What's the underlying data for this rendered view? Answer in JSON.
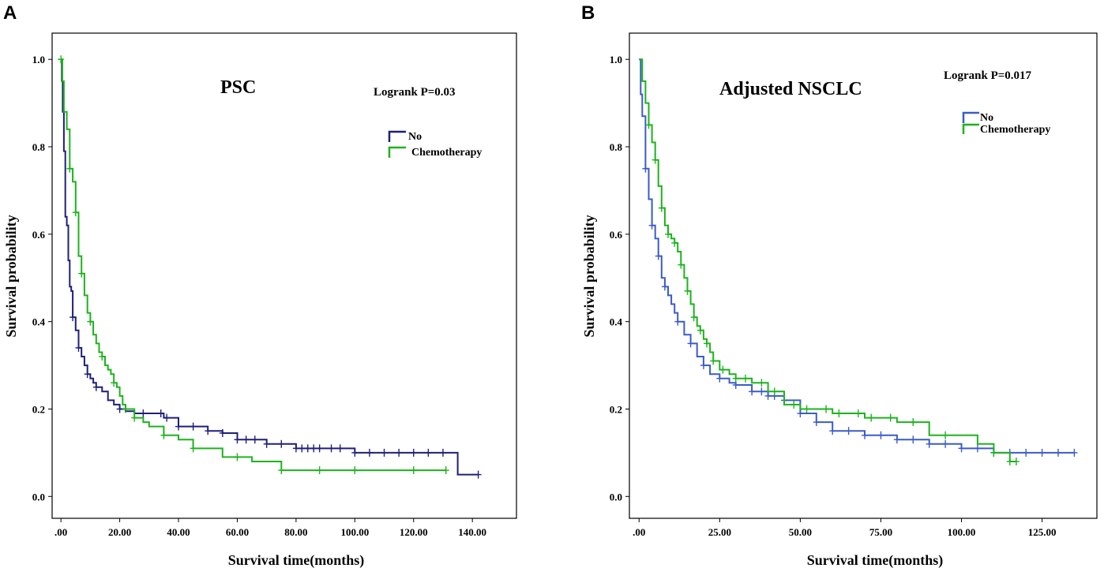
{
  "chart_data": [
    {
      "type": "line",
      "panel_label": "A",
      "title": "PSC",
      "annotation": "Logrank P=0.03",
      "xlabel": "Survival time(months)",
      "ylabel": "Survival probability",
      "xlim": [
        -3,
        155
      ],
      "ylim": [
        -0.05,
        1.06
      ],
      "x_ticks": [
        0,
        20,
        40,
        60,
        80,
        100,
        120,
        140
      ],
      "x_tick_labels": [
        ".00",
        "20.00",
        "40.00",
        "60.00",
        "80.00",
        "100.00",
        "120.00",
        "140.00"
      ],
      "y_ticks": [
        0,
        0.2,
        0.4,
        0.6,
        0.8,
        1.0
      ],
      "y_tick_labels": [
        "0.0",
        "0.2",
        "0.4",
        "0.6",
        "0.8",
        "1.0"
      ],
      "legend_position": "top-right",
      "series": [
        {
          "name": "No",
          "color": "#1F1F7A",
          "x": [
            0,
            0.3,
            0.6,
            1,
            1.5,
            2,
            2.5,
            3,
            3.5,
            4,
            5,
            6,
            7,
            8,
            9,
            10,
            11,
            12,
            14,
            16,
            18,
            20,
            22,
            25,
            30,
            35,
            40,
            50,
            55,
            60,
            70,
            80,
            90,
            100,
            110,
            120,
            130,
            135,
            142
          ],
          "y": [
            1.0,
            0.95,
            0.88,
            0.79,
            0.64,
            0.62,
            0.54,
            0.48,
            0.47,
            0.41,
            0.38,
            0.34,
            0.32,
            0.3,
            0.28,
            0.27,
            0.26,
            0.25,
            0.24,
            0.22,
            0.21,
            0.2,
            0.195,
            0.19,
            0.19,
            0.18,
            0.16,
            0.15,
            0.145,
            0.13,
            0.12,
            0.11,
            0.11,
            0.1,
            0.1,
            0.1,
            0.1,
            0.05,
            0.05
          ],
          "censored_x": [
            4,
            6,
            9,
            12,
            20,
            28,
            34,
            36,
            40,
            45,
            50,
            55,
            60,
            63,
            66,
            70,
            75,
            80,
            82,
            84,
            86,
            88,
            92,
            95,
            100,
            105,
            110,
            115,
            120,
            125,
            130,
            142
          ]
        },
        {
          "name": "Chemotherapy",
          "color": "#1DB31D",
          "x": [
            0,
            0.5,
            1,
            2,
            3,
            4,
            5,
            6,
            7,
            8,
            9,
            10,
            11,
            12,
            13,
            14,
            15,
            16,
            17,
            18,
            19,
            20,
            21,
            22,
            25,
            28,
            30,
            35,
            40,
            45,
            50,
            55,
            60,
            65,
            75,
            85,
            100,
            131
          ],
          "y": [
            1.0,
            0.95,
            0.88,
            0.84,
            0.75,
            0.72,
            0.65,
            0.55,
            0.51,
            0.46,
            0.42,
            0.4,
            0.37,
            0.35,
            0.33,
            0.32,
            0.3,
            0.29,
            0.28,
            0.26,
            0.25,
            0.23,
            0.21,
            0.2,
            0.18,
            0.17,
            0.16,
            0.14,
            0.13,
            0.11,
            0.11,
            0.09,
            0.09,
            0.08,
            0.06,
            0.06,
            0.06,
            0.06
          ],
          "censored_x": [
            0,
            3,
            5,
            7,
            10,
            14,
            18,
            22,
            25,
            35,
            45,
            60,
            75,
            88,
            100,
            120,
            131
          ]
        }
      ]
    },
    {
      "type": "line",
      "panel_label": "B",
      "title": "Adjusted NSCLC",
      "annotation": "Logrank P=0.017",
      "xlabel": "Survival time(months)",
      "ylabel": "Survival probability",
      "xlim": [
        -3,
        142
      ],
      "ylim": [
        -0.05,
        1.06
      ],
      "x_ticks": [
        0,
        25,
        50,
        75,
        100,
        125
      ],
      "x_tick_labels": [
        ".00",
        "25.00",
        "50.00",
        "75.00",
        "100.00",
        "125.00"
      ],
      "y_ticks": [
        0,
        0.2,
        0.4,
        0.6,
        0.8,
        1.0
      ],
      "y_tick_labels": [
        "0.0",
        "0.2",
        "0.4",
        "0.6",
        "0.8",
        "1.0"
      ],
      "legend_position": "top-right",
      "series": [
        {
          "name": "No",
          "color": "#3B5BC8",
          "x": [
            0,
            0.5,
            1,
            2,
            3,
            4,
            5,
            6,
            7,
            8,
            9,
            10,
            11,
            12,
            14,
            16,
            18,
            20,
            22,
            25,
            28,
            30,
            35,
            40,
            45,
            50,
            55,
            60,
            70,
            80,
            90,
            100,
            110,
            120,
            135
          ],
          "y": [
            1.0,
            0.92,
            0.87,
            0.75,
            0.68,
            0.62,
            0.59,
            0.55,
            0.5,
            0.48,
            0.46,
            0.44,
            0.42,
            0.4,
            0.37,
            0.35,
            0.32,
            0.3,
            0.28,
            0.27,
            0.26,
            0.255,
            0.24,
            0.23,
            0.22,
            0.19,
            0.17,
            0.15,
            0.14,
            0.13,
            0.12,
            0.11,
            0.1,
            0.1,
            0.1
          ],
          "censored_x": [
            2,
            4,
            6,
            8,
            12,
            16,
            20,
            25,
            30,
            35,
            38,
            40,
            42,
            45,
            50,
            55,
            60,
            65,
            70,
            75,
            80,
            85,
            90,
            95,
            100,
            105,
            110,
            115,
            120,
            125,
            130,
            135
          ]
        },
        {
          "name": "Chemotherapy",
          "color": "#1DB31D",
          "x": [
            0,
            1,
            2,
            3,
            4,
            5,
            6,
            7,
            8,
            9,
            10,
            11,
            12,
            13,
            14,
            15,
            16,
            17,
            18,
            19,
            20,
            21,
            22,
            23,
            25,
            28,
            30,
            35,
            40,
            45,
            50,
            60,
            70,
            80,
            90,
            105,
            110,
            115,
            117
          ],
          "y": [
            1.0,
            0.95,
            0.9,
            0.85,
            0.81,
            0.77,
            0.71,
            0.66,
            0.62,
            0.6,
            0.59,
            0.58,
            0.56,
            0.53,
            0.5,
            0.47,
            0.44,
            0.41,
            0.39,
            0.38,
            0.36,
            0.35,
            0.33,
            0.31,
            0.29,
            0.28,
            0.27,
            0.26,
            0.24,
            0.21,
            0.2,
            0.19,
            0.18,
            0.17,
            0.14,
            0.12,
            0.1,
            0.08,
            0.08
          ],
          "censored_x": [
            3,
            5,
            7,
            9,
            11,
            13,
            15,
            17,
            19,
            21,
            23,
            26,
            30,
            33,
            38,
            42,
            48,
            52,
            58,
            62,
            68,
            72,
            78,
            85,
            95,
            110,
            115,
            117
          ]
        }
      ]
    }
  ]
}
